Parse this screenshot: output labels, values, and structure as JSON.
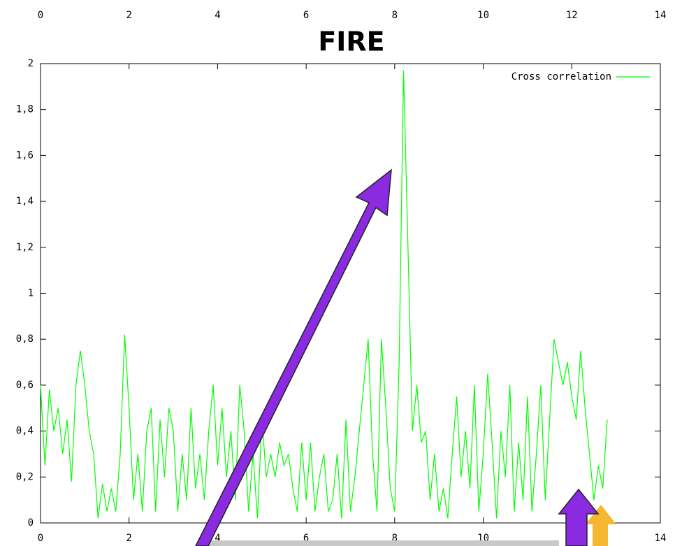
{
  "chart_data": {
    "type": "line",
    "title": "FIRE",
    "x": [
      0,
      0.1,
      0.2,
      0.3,
      0.4,
      0.5,
      0.6,
      0.7,
      0.8,
      0.9,
      1,
      1.1,
      1.2,
      1.3,
      1.4,
      1.5,
      1.6,
      1.7,
      1.8,
      1.9,
      2,
      2.1,
      2.2,
      2.3,
      2.4,
      2.5,
      2.6,
      2.7,
      2.8,
      2.9,
      3,
      3.1,
      3.2,
      3.3,
      3.4,
      3.5,
      3.6,
      3.7,
      3.8,
      3.9,
      4,
      4.1,
      4.2,
      4.3,
      4.4,
      4.5,
      4.6,
      4.7,
      4.8,
      4.9,
      5,
      5.1,
      5.2,
      5.3,
      5.4,
      5.5,
      5.6,
      5.7,
      5.8,
      5.9,
      6,
      6.1,
      6.2,
      6.3,
      6.4,
      6.5,
      6.6,
      6.7,
      6.8,
      6.9,
      7,
      7.1,
      7.2,
      7.3,
      7.4,
      7.5,
      7.6,
      7.7,
      7.8,
      7.9,
      8,
      8.1,
      8.2,
      8.3,
      8.4,
      8.5,
      8.6,
      8.7,
      8.8,
      8.9,
      9,
      9.1,
      9.2,
      9.3,
      9.4,
      9.5,
      9.6,
      9.7,
      9.8,
      9.9,
      10,
      10.1,
      10.2,
      10.3,
      10.4,
      10.5,
      10.6,
      10.7,
      10.8,
      10.9,
      11,
      11.1,
      11.2,
      11.3,
      11.4,
      11.5,
      11.6,
      11.7,
      11.8,
      11.9,
      12,
      12.1,
      12.2,
      12.3,
      12.4,
      12.5,
      12.6,
      12.7,
      12.8
    ],
    "series": [
      {
        "name": "Cross correlation",
        "color": "#00ff00",
        "values": [
          0.6,
          0.25,
          0.58,
          0.4,
          0.5,
          0.3,
          0.45,
          0.18,
          0.6,
          0.75,
          0.6,
          0.4,
          0.3,
          0.02,
          0.17,
          0.05,
          0.15,
          0.05,
          0.3,
          0.82,
          0.5,
          0.1,
          0.3,
          0.05,
          0.4,
          0.5,
          0.05,
          0.45,
          0.2,
          0.5,
          0.4,
          0.05,
          0.3,
          0.1,
          0.5,
          0.15,
          0.3,
          0.1,
          0.4,
          0.6,
          0.25,
          0.5,
          0.2,
          0.4,
          0.1,
          0.6,
          0.4,
          0.05,
          0.3,
          0.02,
          0.45,
          0.2,
          0.3,
          0.2,
          0.35,
          0.25,
          0.3,
          0.15,
          0.05,
          0.35,
          0.1,
          0.35,
          0.05,
          0.2,
          0.3,
          0.05,
          0.1,
          0.3,
          0.02,
          0.45,
          0.05,
          0.2,
          0.4,
          0.6,
          0.8,
          0.3,
          0.05,
          0.8,
          0.5,
          0.15,
          0.05,
          0.7,
          1.97,
          1.2,
          0.4,
          0.6,
          0.35,
          0.4,
          0.1,
          0.3,
          0.05,
          0.15,
          0.02,
          0.3,
          0.55,
          0.2,
          0.4,
          0.15,
          0.6,
          0.05,
          0.3,
          0.65,
          0.35,
          0.02,
          0.4,
          0.2,
          0.6,
          0.05,
          0.35,
          0.1,
          0.55,
          0.05,
          0.3,
          0.6,
          0.1,
          0.45,
          0.8,
          0.7,
          0.6,
          0.7,
          0.55,
          0.45,
          0.75,
          0.5,
          0.3,
          0.1,
          0.25,
          0.15,
          0.45
        ]
      }
    ],
    "xlim": [
      0,
      14
    ],
    "xticks": [
      0,
      2,
      4,
      6,
      8,
      10,
      12,
      14
    ],
    "ylim": [
      0,
      2
    ],
    "yticks": [
      0,
      {
        "value": 0.2,
        "label": "0,2"
      },
      {
        "value": 0.4,
        "label": "0,4"
      },
      {
        "value": 0.6,
        "label": "0,6"
      },
      {
        "value": 0.8,
        "label": "0,8"
      },
      1,
      {
        "value": 1.2,
        "label": "1,2"
      },
      {
        "value": 1.4,
        "label": "1,4"
      },
      {
        "value": 1.6,
        "label": "1,6"
      },
      {
        "value": 1.8,
        "label": "1,8"
      },
      2
    ],
    "legend": "top-right"
  }
}
